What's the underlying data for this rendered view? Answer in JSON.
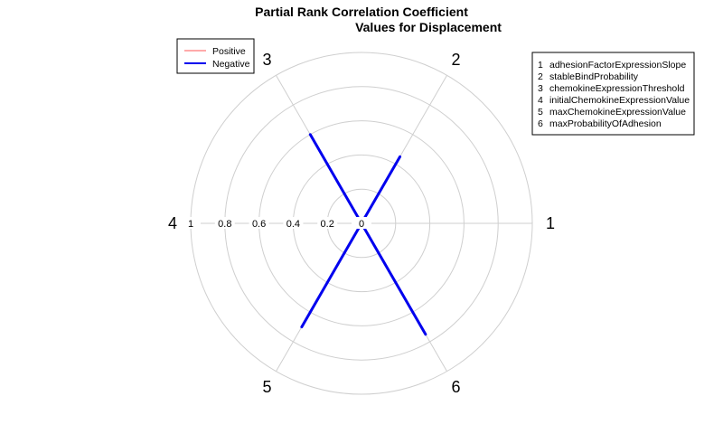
{
  "chart_data": {
    "type": "radar",
    "title_line1": "Partial Rank Correlation Coefficient",
    "title_line2": "Values for Displacement",
    "axes": [
      "1",
      "2",
      "3",
      "4",
      "5",
      "6"
    ],
    "radial_range": [
      0,
      1
    ],
    "radial_ticks": [
      "1",
      "0.8",
      "0.6",
      "0.4",
      "0.2",
      "0"
    ],
    "grid": true,
    "series": [
      {
        "name": "Positive",
        "color": "#ff5555",
        "values": [
          0,
          0,
          0,
          0,
          0,
          0
        ]
      },
      {
        "name": "Negative",
        "color": "#0000ee",
        "values": [
          0.05,
          0.45,
          0.6,
          0.0,
          0.7,
          0.75
        ]
      }
    ],
    "series_legend_placement": "top-left",
    "parameter_legend_placement": "top-right",
    "parameter_legend": [
      {
        "num": "1",
        "name": "adhesionFactorExpressionSlope"
      },
      {
        "num": "2",
        "name": "stableBindProbability"
      },
      {
        "num": "3",
        "name": "chemokineExpressionThreshold"
      },
      {
        "num": "4",
        "name": "initialChemokineExpressionValue"
      },
      {
        "num": "5",
        "name": "maxChemokineExpressionValue"
      },
      {
        "num": "6",
        "name": "maxProbabilityOfAdhesion"
      }
    ]
  }
}
